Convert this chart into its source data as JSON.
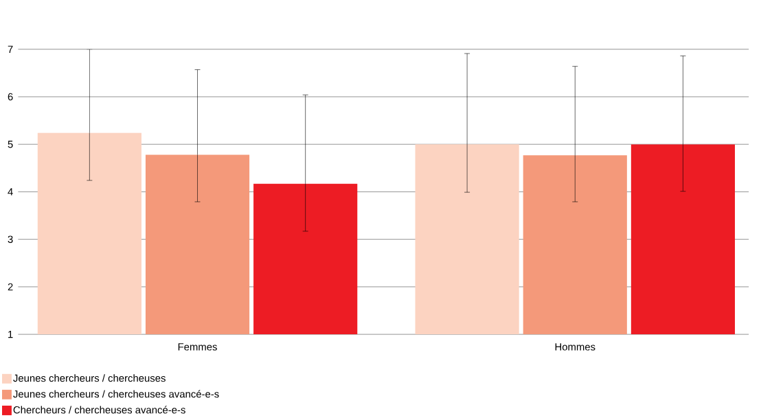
{
  "chart_data": {
    "type": "bar",
    "categories": [
      "Femmes",
      "Hommes"
    ],
    "series": [
      {
        "name": "Jeunes chercheurs / chercheuses",
        "color": "#fcd3c1",
        "values": [
          5.24,
          5.0
        ],
        "errors": [
          [
            4.24,
            7.0
          ],
          [
            3.99,
            6.91
          ]
        ]
      },
      {
        "name": "Jeunes chercheurs / chercheuses avancé-e-s",
        "color": "#f4997a",
        "values": [
          4.78,
          4.77
        ],
        "errors": [
          [
            3.79,
            6.57
          ],
          [
            3.79,
            6.64
          ]
        ]
      },
      {
        "name": "Chercheurs / chercheuses avancé-e-s",
        "color": "#ed1c24",
        "values": [
          4.17,
          5.0
        ],
        "errors": [
          [
            3.17,
            6.04
          ],
          [
            4.01,
            6.86
          ]
        ]
      }
    ],
    "ylim": [
      1,
      7
    ],
    "yticks": [
      1,
      2,
      3,
      4,
      5,
      6,
      7
    ],
    "grid": "y",
    "legend": "bottom left"
  }
}
